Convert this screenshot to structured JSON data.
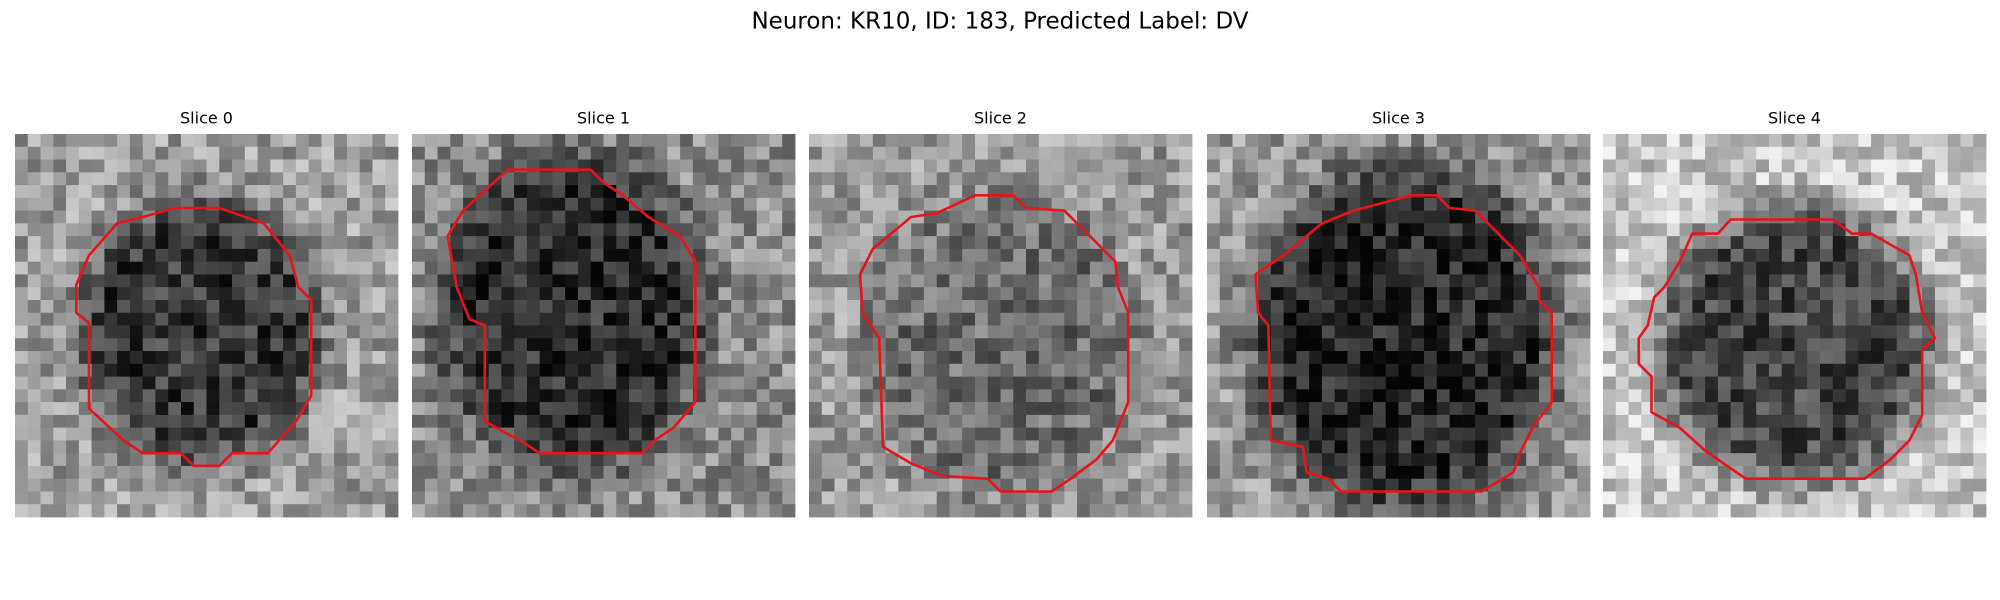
{
  "title": "Neuron: KR10, ID: 183, Predicted Label: DV",
  "panels": [
    {
      "title": "Slice 0"
    },
    {
      "title": "Slice 1"
    },
    {
      "title": "Slice 2"
    },
    {
      "title": "Slice 3"
    },
    {
      "title": "Slice 4"
    }
  ]
}
